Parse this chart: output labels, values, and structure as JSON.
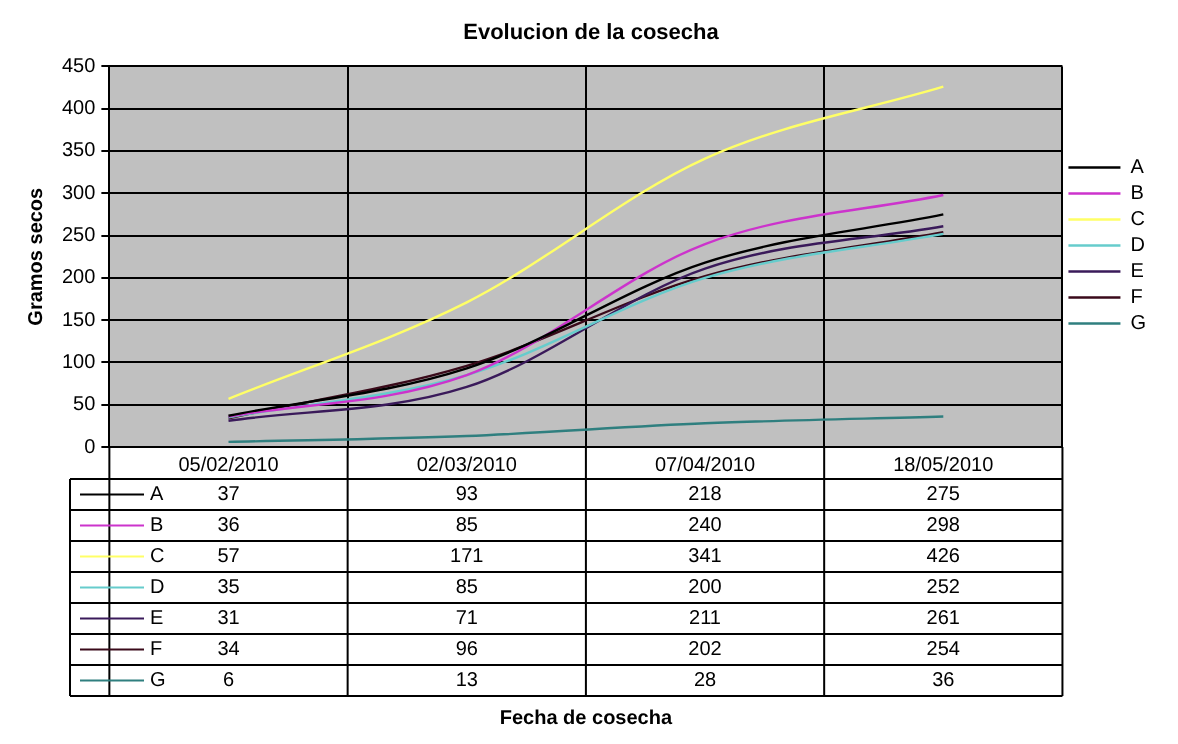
{
  "chart_data": {
    "type": "line",
    "title": "Evolucion de la cosecha",
    "annotations": [
      "Fecha de cosecha"
    ],
    "ylabel": "Gramos secos",
    "categories": [
      "05/02/2010",
      "02/03/2010",
      "07/04/2010",
      "18/05/2010"
    ],
    "series": [
      {
        "name": "A",
        "color": "#000000",
        "values": [
          37,
          93,
          218,
          275
        ]
      },
      {
        "name": "B",
        "color": "#cc33cc",
        "values": [
          36,
          85,
          240,
          298
        ]
      },
      {
        "name": "C",
        "color": "#ffff66",
        "values": [
          57,
          171,
          341,
          426
        ]
      },
      {
        "name": "D",
        "color": "#66cccc",
        "values": [
          35,
          85,
          200,
          252
        ]
      },
      {
        "name": "E",
        "color": "#3a1a5a",
        "values": [
          31,
          71,
          211,
          261
        ]
      },
      {
        "name": "F",
        "color": "#3a0a1a",
        "values": [
          34,
          96,
          202,
          254
        ]
      },
      {
        "name": "G",
        "color": "#2f7f7f",
        "values": [
          6,
          13,
          28,
          36
        ]
      }
    ],
    "ylim": [
      0,
      450
    ],
    "yticks": [
      0,
      50,
      100,
      150,
      200,
      250,
      300,
      350,
      400,
      450
    ],
    "grid": true,
    "legend": "right",
    "data_labels": true,
    "marker": "none",
    "line_style": "solid"
  }
}
